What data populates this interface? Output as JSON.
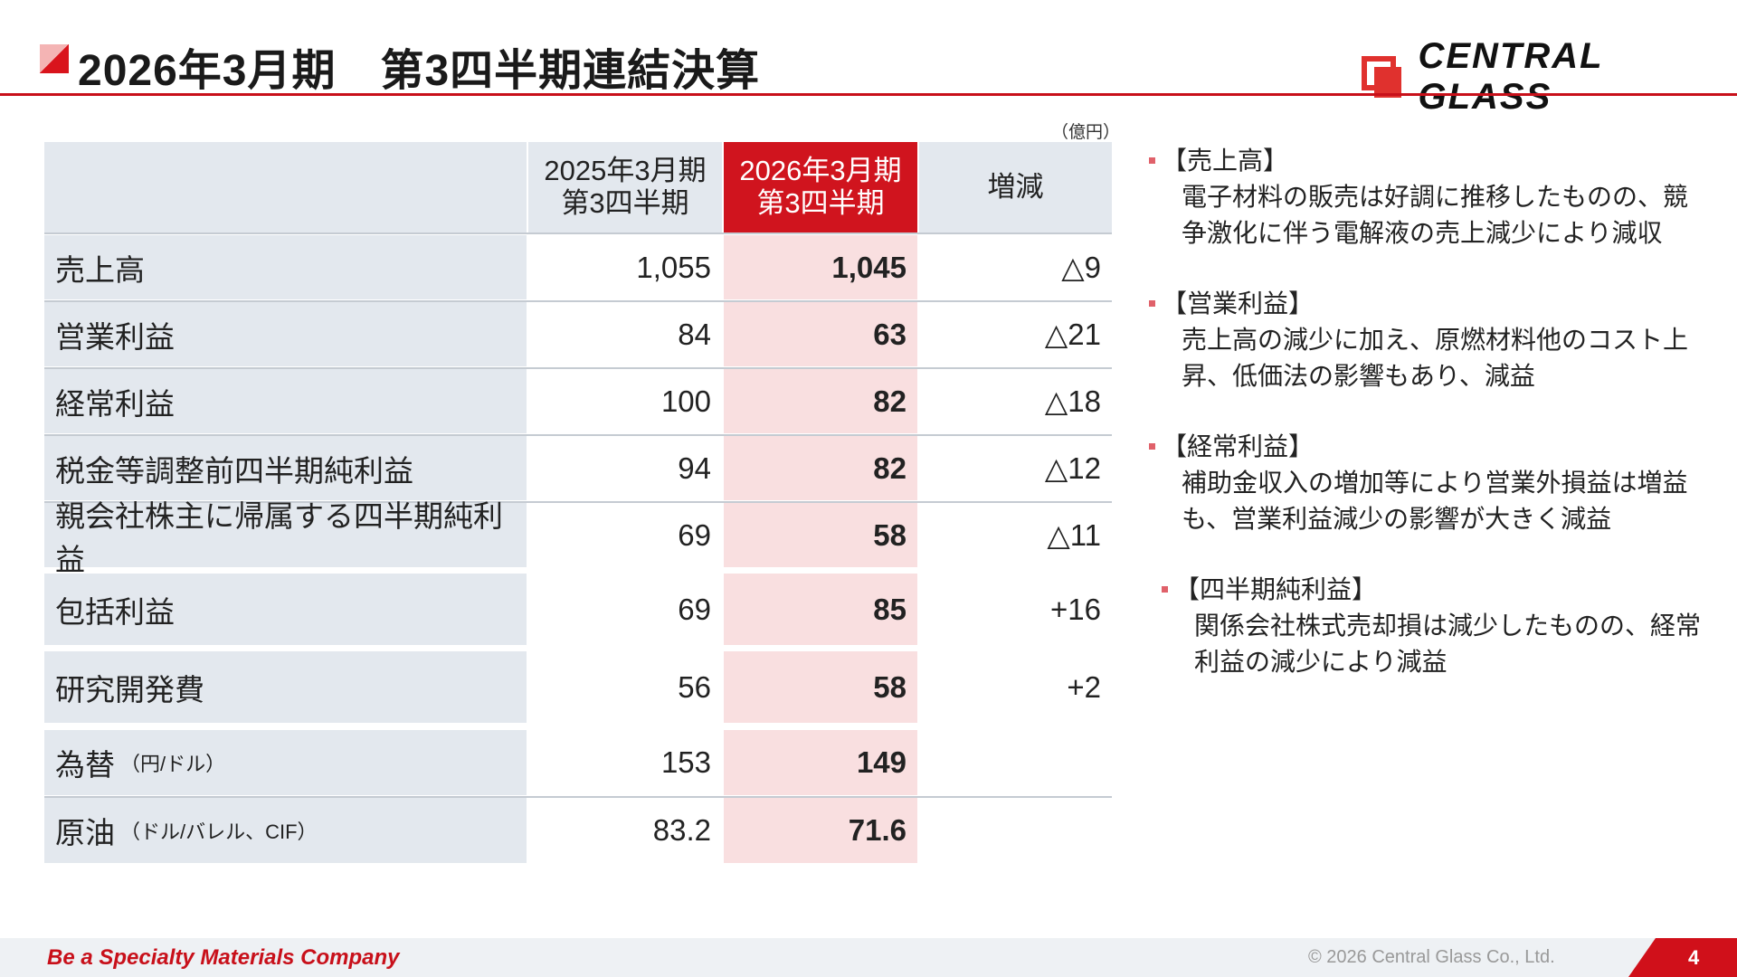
{
  "header": {
    "title": "2026年3月期　第3四半期連結決算",
    "logo_text": "CENTRAL GLASS"
  },
  "unit": "（億円）",
  "table": {
    "columns": [
      "",
      "2025年3月期\n第3四半期",
      "2026年3月期\n第3四半期",
      "増減"
    ],
    "rows": [
      {
        "label": "売上高",
        "sub": "",
        "prev": "1,055",
        "cur": "1,045",
        "diff": "△9"
      },
      {
        "label": "営業利益",
        "sub": "",
        "prev": "84",
        "cur": "63",
        "diff": "△21"
      },
      {
        "label": "経常利益",
        "sub": "",
        "prev": "100",
        "cur": "82",
        "diff": "△18"
      },
      {
        "label": "税金等調整前四半期純利益",
        "sub": "",
        "prev": "94",
        "cur": "82",
        "diff": "△12"
      },
      {
        "label": "親会社株主に帰属する四半期純利益",
        "sub": "",
        "prev": "69",
        "cur": "58",
        "diff": "△11"
      },
      {
        "label": "包括利益",
        "sub": "",
        "prev": "69",
        "cur": "85",
        "diff": "+16"
      },
      {
        "label": "研究開発費",
        "sub": "",
        "prev": "56",
        "cur": "58",
        "diff": "+2"
      },
      {
        "label": "為替",
        "sub": "（円/ドル）",
        "prev": "153",
        "cur": "149",
        "diff": ""
      },
      {
        "label": "原油",
        "sub": "（ドル/バレル、CIF）",
        "prev": "83.2",
        "cur": "71.6",
        "diff": ""
      }
    ]
  },
  "notes": [
    {
      "heading": "【売上高】",
      "body": "電子材料の販売は好調に推移したものの、競争激化に伴う電解液の売上減少により減収"
    },
    {
      "heading": "【営業利益】",
      "body": "売上高の減少に加え、原燃材料他のコスト上昇、低価法の影響もあり、減益"
    },
    {
      "heading": "【経常利益】",
      "body": "補助金収入の増加等により営業外損益は増益も、営業利益減少の影響が大きく減益"
    },
    {
      "heading": "【四半期純利益】",
      "body": "関係会社株式売却損は減少したものの、経常利益の減少により減益"
    }
  ],
  "footer": {
    "slogan": "Be a Specialty Materials Company",
    "copyright": "© 2026 Central Glass Co., Ltd.",
    "page": "4"
  },
  "colors": {
    "accent": "#c8101a",
    "label_bg": "#e3e8ee",
    "current_bg": "#f9dfe0"
  }
}
